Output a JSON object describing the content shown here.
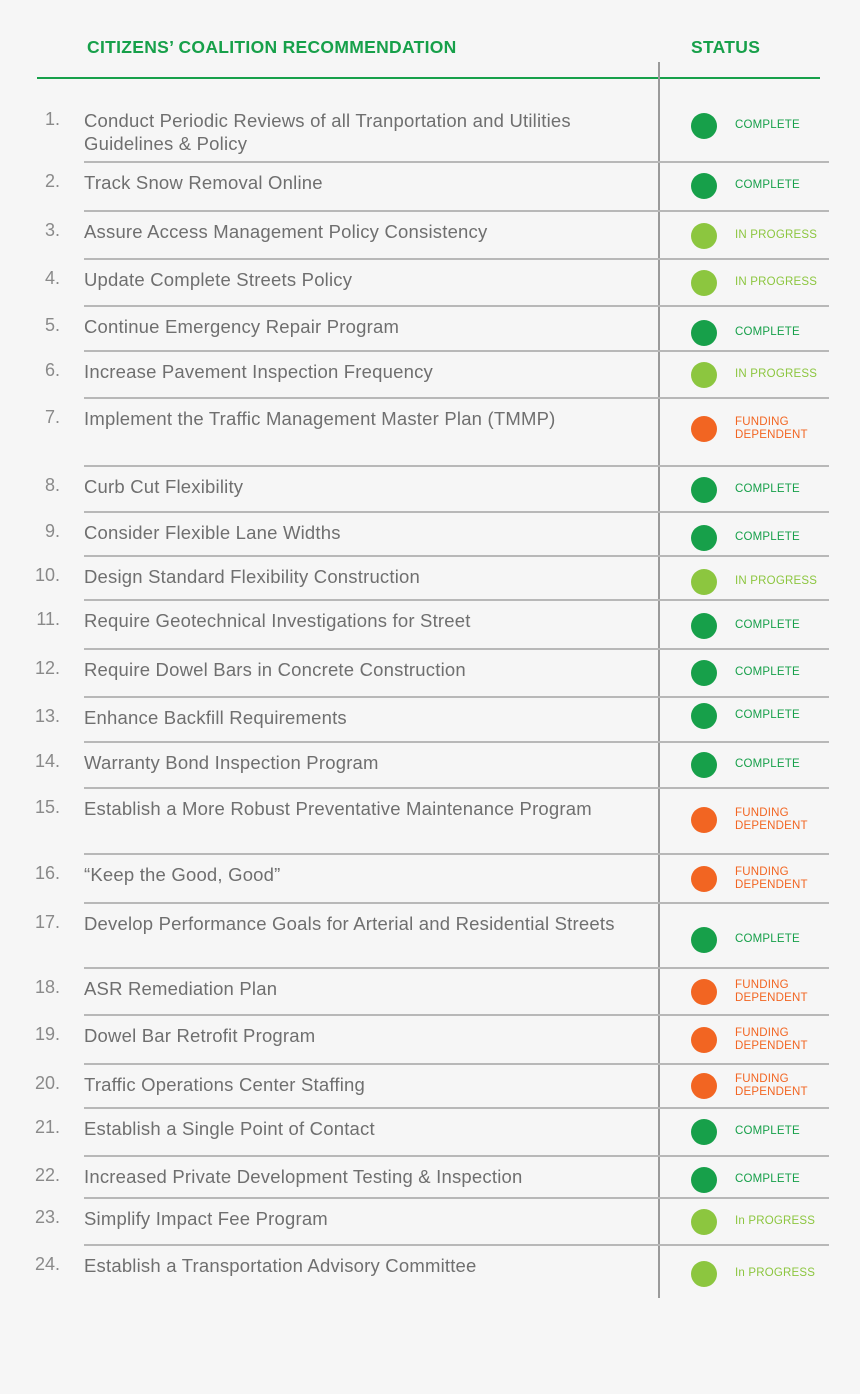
{
  "header": {
    "recommendation_label": "CITIZENS’ COALITION RECOMMENDATION",
    "status_label": "STATUS"
  },
  "status_colors": {
    "complete": "#17a04a",
    "in_progress": "#8cc63f",
    "funding": "#f26522"
  },
  "rows": [
    {
      "num": "1.",
      "text": "Conduct Periodic Reviews of all Tranportation and Utilities Guidelines & Policy",
      "kind": "complete",
      "status": "COMPLETE"
    },
    {
      "num": "2.",
      "text": "Track Snow Removal Online",
      "kind": "complete",
      "status": "COMPLETE"
    },
    {
      "num": "3.",
      "text": "Assure Access Management Policy Consistency",
      "kind": "in_progress",
      "status": "IN PROGRESS"
    },
    {
      "num": "4.",
      "text": "Update Complete Streets Policy",
      "kind": "in_progress",
      "status": "IN PROGRESS"
    },
    {
      "num": "5.",
      "text": "Continue Emergency Repair Program",
      "kind": "complete",
      "status": "COMPLETE"
    },
    {
      "num": "6.",
      "text": "Increase Pavement Inspection Frequency",
      "kind": "in_progress",
      "status": "IN PROGRESS"
    },
    {
      "num": "7.",
      "text": "Implement the Traffic Management Master Plan (TMMP)",
      "kind": "funding",
      "status": "FUNDING\nDEPENDENT"
    },
    {
      "num": "8.",
      "text": "Curb Cut Flexibility",
      "kind": "complete",
      "status": "COMPLETE"
    },
    {
      "num": "9.",
      "text": "Consider Flexible Lane Widths",
      "kind": "complete",
      "status": "COMPLETE"
    },
    {
      "num": "10.",
      "text": "Design Standard Flexibility Construction",
      "kind": "in_progress",
      "status": "IN PROGRESS"
    },
    {
      "num": "11.",
      "text": "Require Geotechnical Investigations for Street",
      "kind": "complete",
      "status": "COMPLETE"
    },
    {
      "num": "12.",
      "text": "Require Dowel Bars in Concrete Construction",
      "kind": "complete",
      "status": "COMPLETE"
    },
    {
      "num": "13.",
      "text": "Enhance Backfill Requirements",
      "kind": "complete",
      "status": "COMPLETE"
    },
    {
      "num": "14.",
      "text": "Warranty Bond Inspection Program",
      "kind": "complete",
      "status": "COMPLETE"
    },
    {
      "num": "15.",
      "text": "Establish a More Robust Preventative Maintenance Program",
      "kind": "funding",
      "status": "FUNDING\nDEPENDENT"
    },
    {
      "num": "16.",
      "text": "“Keep the Good, Good”",
      "kind": "funding",
      "status": "FUNDING\nDEPENDENT"
    },
    {
      "num": "17.",
      "text": "Develop Performance Goals for Arterial and Residential Streets",
      "kind": "complete",
      "status": "COMPLETE"
    },
    {
      "num": "18.",
      "text": "ASR Remediation Plan",
      "kind": "funding",
      "status": "FUNDING\nDEPENDENT"
    },
    {
      "num": "19.",
      "text": "Dowel Bar Retrofit Program",
      "kind": "funding",
      "status": "FUNDING\nDEPENDENT"
    },
    {
      "num": "20.",
      "text": "Traffic Operations Center Staffing",
      "kind": "funding",
      "status": "FUNDING\nDEPENDENT"
    },
    {
      "num": "21.",
      "text": "Establish a Single Point of Contact",
      "kind": "complete",
      "status": "COMPLETE"
    },
    {
      "num": "22.",
      "text": "Increased Private Development Testing & Inspection",
      "kind": "complete",
      "status": "COMPLETE"
    },
    {
      "num": "23.",
      "text": "Simplify Impact Fee Program",
      "kind": "in_progress",
      "status": "In PROGRESS"
    },
    {
      "num": "24.",
      "text": "Establish a Transportation Advisory Committee",
      "kind": "in_progress",
      "status": "In PROGRESS"
    }
  ]
}
